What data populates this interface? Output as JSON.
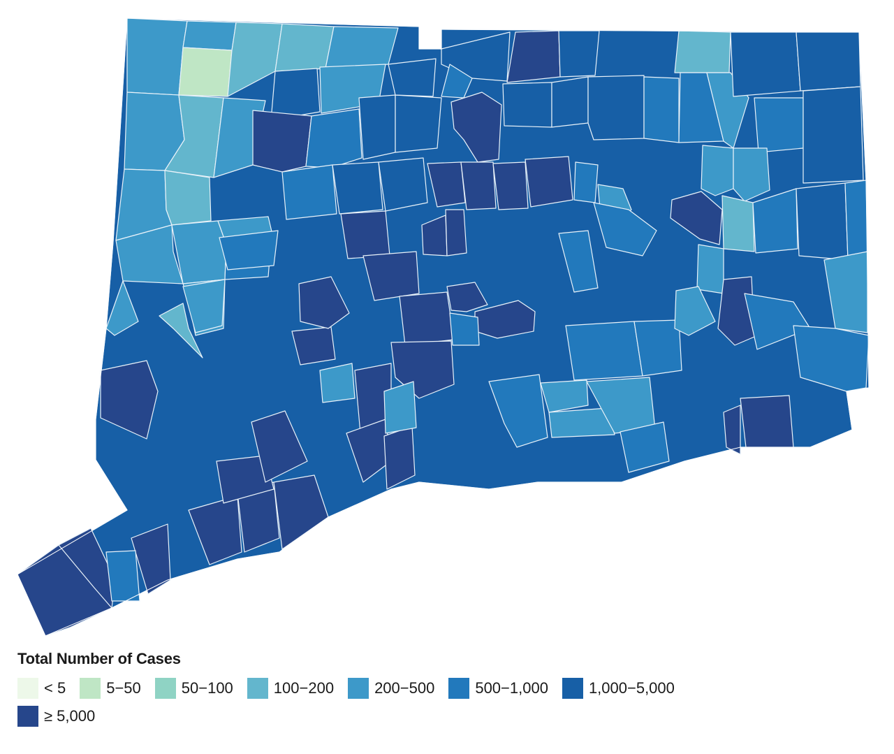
{
  "map": {
    "region": "Connecticut",
    "unit": "town",
    "legend": {
      "title": "Total Number of Cases",
      "bins": [
        {
          "label": "< 5",
          "color": "#edf8e9"
        },
        {
          "label": "5−50",
          "color": "#bfe6c5"
        },
        {
          "label": "50−100",
          "color": "#8fd3c4"
        },
        {
          "label": "100−200",
          "color": "#63b6cd"
        },
        {
          "label": "200−500",
          "color": "#3d99c9"
        },
        {
          "label": "500−1,000",
          "color": "#2279bc"
        },
        {
          "label": "1,000−5,000",
          "color": "#175fa6"
        },
        {
          "label": "≥ 5,000",
          "color": "#26468b"
        }
      ]
    }
  }
}
